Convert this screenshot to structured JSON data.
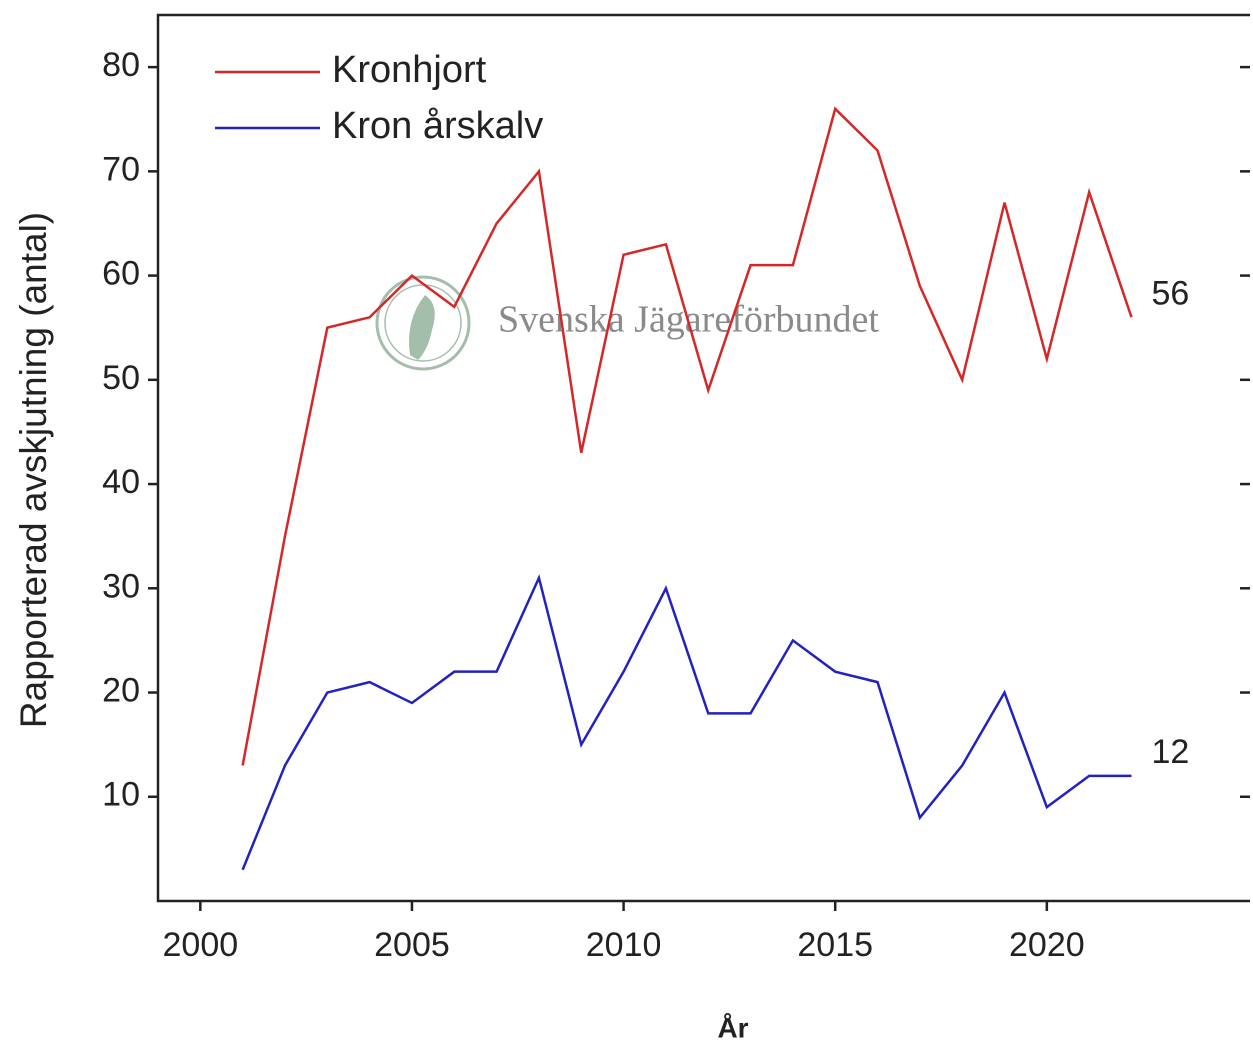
{
  "chart_data": {
    "type": "line",
    "x": [
      2001,
      2002,
      2003,
      2004,
      2005,
      2006,
      2007,
      2008,
      2009,
      2010,
      2011,
      2012,
      2013,
      2014,
      2015,
      2016,
      2017,
      2018,
      2019,
      2020,
      2021,
      2022
    ],
    "series": [
      {
        "name": "Kronhjort",
        "color": "#d62728",
        "end_label": "56",
        "values": [
          13,
          35,
          55,
          56,
          60,
          57,
          65,
          70,
          43,
          62,
          63,
          49,
          61,
          61,
          76,
          72,
          59,
          50,
          67,
          52,
          68,
          56
        ]
      },
      {
        "name": "Kron årskalv",
        "color": "#2222c0",
        "end_label": "12",
        "values": [
          3,
          13,
          20,
          21,
          19,
          22,
          22,
          31,
          15,
          22,
          30,
          18,
          18,
          25,
          22,
          21,
          8,
          13,
          20,
          9,
          12,
          12
        ]
      }
    ],
    "xlim": [
      1999,
      2024.8
    ],
    "xticks": [
      2000,
      2005,
      2010,
      2015,
      2020
    ],
    "ylim": [
      0,
      85
    ],
    "yticks": [
      10,
      20,
      30,
      40,
      50,
      60,
      70,
      80
    ],
    "x_label": "År",
    "y_label": "Rapporterad avskjutning (antal)",
    "watermark": "Svenska Jägareförbundet",
    "legend": "upper left"
  }
}
